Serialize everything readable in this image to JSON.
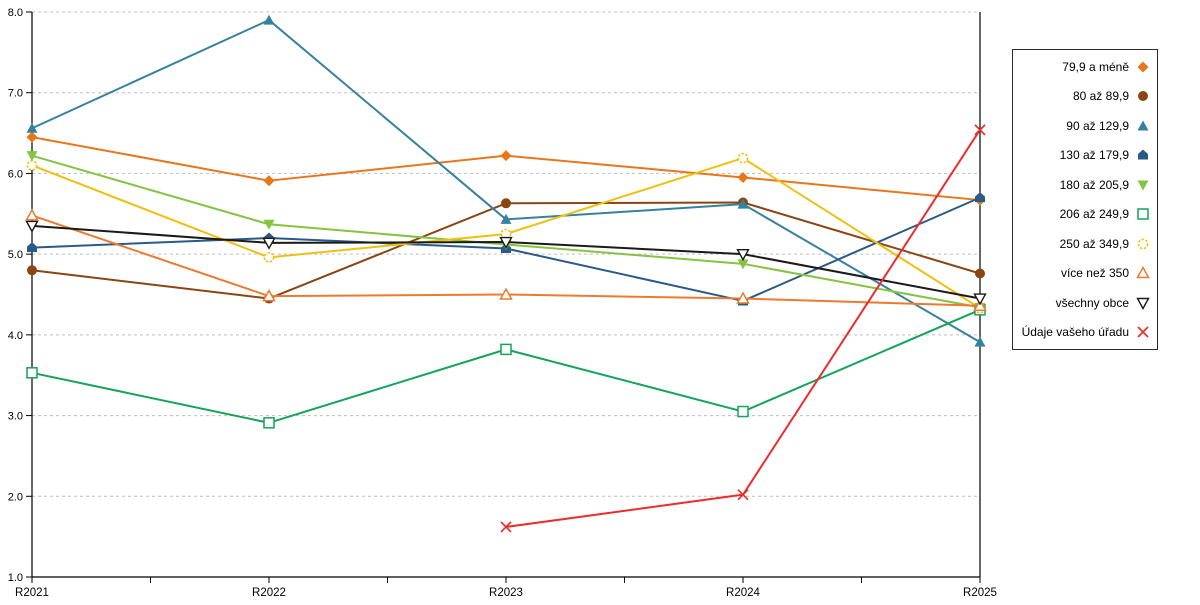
{
  "chart_data": {
    "type": "line",
    "title": "",
    "categories": [
      "R2021",
      "R2022",
      "R2023",
      "R2024",
      "R2025"
    ],
    "y_axis": {
      "min": 1.0,
      "max": 8.0,
      "tick_step": 1.0,
      "tick_labels": [
        "1.0",
        "2.0",
        "3.0",
        "4.0",
        "5.0",
        "6.0",
        "7.0",
        "8.0"
      ]
    },
    "grid": "horizontal-dashed",
    "grid_color": "#bfbfbf",
    "axis_color": "#000000",
    "legend_position": "right",
    "series": [
      {
        "name": "79,9 a méně",
        "color": "#E8761B",
        "marker": "diamond",
        "values": [
          6.45,
          5.91,
          6.22,
          5.95,
          5.67
        ]
      },
      {
        "name": "80 až 89,9",
        "color": "#8B4512",
        "marker": "circle",
        "values": [
          4.8,
          4.45,
          5.63,
          5.64,
          4.76
        ]
      },
      {
        "name": "90 až 129,9",
        "color": "#35829F",
        "marker": "triangle-up",
        "values": [
          6.56,
          7.9,
          5.43,
          5.62,
          3.91
        ]
      },
      {
        "name": "130 až 179,9",
        "color": "#2C5A87",
        "marker": "pentagon",
        "values": [
          5.08,
          5.2,
          5.07,
          4.42,
          5.7
        ]
      },
      {
        "name": "180 až 205,9",
        "color": "#84C441",
        "marker": "triangle-down",
        "values": [
          6.22,
          5.37,
          5.12,
          4.88,
          4.34
        ]
      },
      {
        "name": "206 až 249,9",
        "color": "#14A45A",
        "marker": "square-open",
        "values": [
          3.53,
          2.91,
          3.82,
          3.05,
          4.31
        ]
      },
      {
        "name": "250 až 349,9",
        "color": "#F0C010",
        "marker": "circle-open",
        "values": [
          6.1,
          4.96,
          5.25,
          6.19,
          4.33
        ]
      },
      {
        "name": "více než 350",
        "color": "#ED7A30",
        "marker": "triangle-open",
        "values": [
          5.48,
          4.48,
          4.5,
          4.45,
          4.36
        ]
      },
      {
        "name": "všechny obce",
        "color": "#1A1A1A",
        "marker": "triangle-down-open",
        "values": [
          5.35,
          5.14,
          5.15,
          5.0,
          4.45
        ]
      },
      {
        "name": "Údaje vašeho úřadu",
        "color": "#EC2D2D",
        "marker": "x",
        "values": [
          null,
          null,
          1.62,
          2.02,
          6.54
        ]
      }
    ]
  }
}
